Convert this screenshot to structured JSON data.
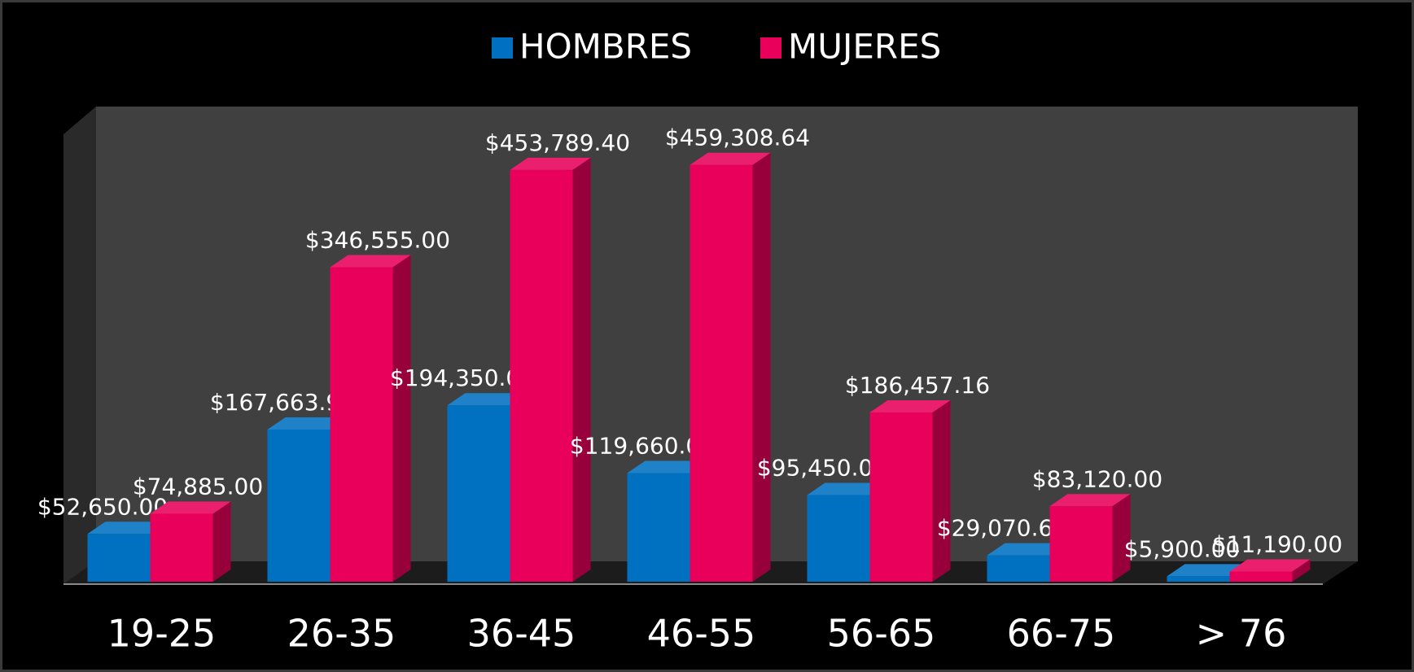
{
  "chart_data": {
    "type": "bar3d",
    "categories": [
      "19-25",
      "26-35",
      "36-45",
      "46-55",
      "56-65",
      "66-75",
      "> 76"
    ],
    "series": [
      {
        "name": "HOMBRES",
        "color": "#0070c0",
        "values": [
          52650.0,
          167663.99,
          194350.0,
          119660.0,
          95450.0,
          29070.65,
          5900.0
        ],
        "value_labels": [
          "$52,650.00",
          "$167,663.99",
          "$194,350.00",
          "$119,660.00",
          "$95,450.00",
          "$29,070.65",
          "$5,900.00"
        ]
      },
      {
        "name": "MUJERES",
        "color": "#e8005a",
        "values": [
          74885.0,
          346555.0,
          453789.4,
          459308.64,
          186457.16,
          83120.0,
          11190.0
        ],
        "value_labels": [
          "$74,885.00",
          "$346,555.00",
          "$453,789.40",
          "$459,308.64",
          "$186,457.16",
          "$83,120.00",
          "$11,190.00"
        ]
      }
    ],
    "ylim": [
      0,
      520000
    ],
    "legend": "top"
  }
}
